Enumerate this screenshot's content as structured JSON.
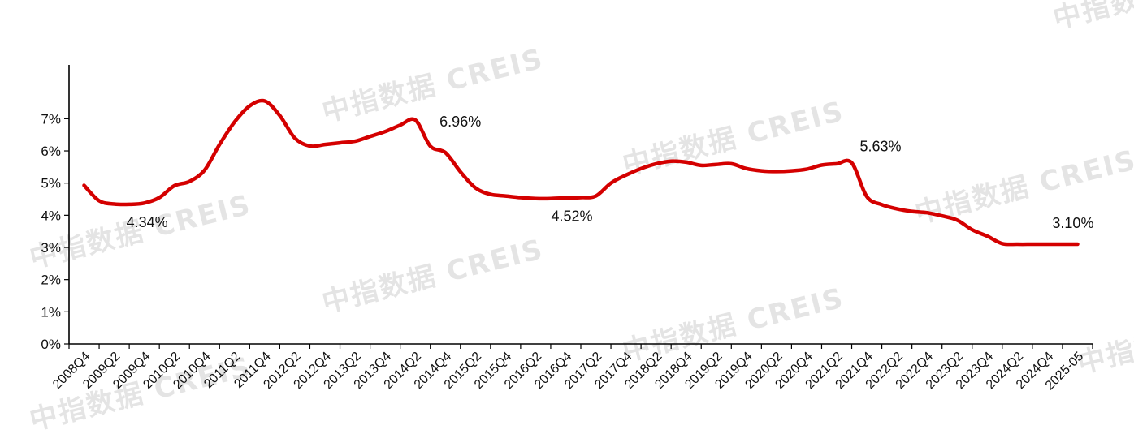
{
  "watermark": "中指数据 CREIS",
  "chart_data": {
    "type": "line",
    "title": "",
    "xlabel": "",
    "ylabel": "",
    "ylim": [
      0,
      8
    ],
    "y_ticks": [
      {
        "value": 0,
        "label": "0%"
      },
      {
        "value": 1,
        "label": "1%"
      },
      {
        "value": 2,
        "label": "2%"
      },
      {
        "value": 3,
        "label": "3%"
      },
      {
        "value": 4,
        "label": "4%"
      },
      {
        "value": 5,
        "label": "5%"
      },
      {
        "value": 6,
        "label": "6%"
      },
      {
        "value": 7,
        "label": "7%"
      }
    ],
    "categories": [
      "2008Q4",
      "2009Q2",
      "2009Q4",
      "2010Q2",
      "2010Q4",
      "2011Q2",
      "2011Q4",
      "2012Q2",
      "2012Q4",
      "2013Q2",
      "2013Q4",
      "2014Q2",
      "2014Q4",
      "2015Q2",
      "2015Q4",
      "2016Q2",
      "2016Q4",
      "2017Q2",
      "2017Q4",
      "2018Q2",
      "2018Q4",
      "2019Q2",
      "2019Q4",
      "2020Q2",
      "2020Q4",
      "2021Q2",
      "2021Q4",
      "2022Q2",
      "2022Q4",
      "2023Q2",
      "2023Q4",
      "2024Q2",
      "2024Q4",
      "2025-05"
    ],
    "series": [
      {
        "color": "#d40000",
        "x": [
          0,
          0.5,
          1,
          1.5,
          2,
          2.5,
          3,
          3.5,
          4,
          4.5,
          5,
          5.5,
          6,
          6.5,
          7,
          7.5,
          8,
          8.5,
          9,
          9.5,
          10,
          10.5,
          11,
          11.5,
          12,
          12.5,
          13,
          13.5,
          14,
          14.5,
          15,
          15.5,
          16,
          16.5,
          17,
          17.5,
          18,
          18.5,
          19,
          19.5,
          20,
          20.5,
          21,
          21.5,
          22,
          22.5,
          23,
          23.5,
          24,
          24.5,
          25,
          25.5,
          26,
          26.5,
          27,
          27.5,
          28,
          28.5,
          29,
          29.5,
          30,
          30.5,
          31,
          31.5,
          32,
          32.5,
          33
        ],
        "values": [
          4.93,
          4.45,
          4.35,
          4.34,
          4.38,
          4.55,
          4.92,
          5.05,
          5.4,
          6.2,
          6.9,
          7.4,
          7.55,
          7.1,
          6.4,
          6.15,
          6.2,
          6.25,
          6.3,
          6.45,
          6.6,
          6.8,
          6.96,
          6.15,
          5.95,
          5.35,
          4.85,
          4.65,
          4.6,
          4.55,
          4.52,
          4.52,
          4.54,
          4.55,
          4.6,
          5.0,
          5.25,
          5.45,
          5.6,
          5.68,
          5.65,
          5.55,
          5.58,
          5.6,
          5.45,
          5.38,
          5.36,
          5.38,
          5.43,
          5.56,
          5.6,
          5.63,
          4.58,
          4.33,
          4.2,
          4.12,
          4.08,
          3.98,
          3.85,
          3.55,
          3.35,
          3.12,
          3.1,
          3.1,
          3.1,
          3.1,
          3.1
        ]
      }
    ],
    "annotations": [
      {
        "x": 2,
        "y": 4.34,
        "label": "4.34%"
      },
      {
        "x": 11,
        "y": 6.96,
        "label": "6.96%"
      },
      {
        "x": 16,
        "y": 4.52,
        "label": "4.52%"
      },
      {
        "x": 25.5,
        "y": 5.63,
        "label": "5.63%"
      },
      {
        "x": 32,
        "y": 3.1,
        "label": "3.10%"
      }
    ],
    "grid": false,
    "legend": "none"
  }
}
